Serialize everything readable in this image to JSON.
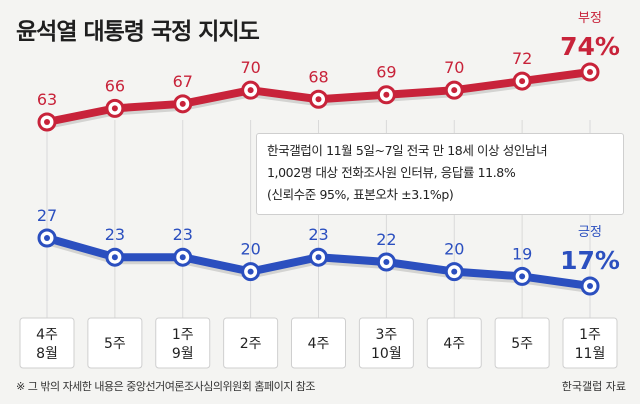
{
  "title": "윤석열 대통령 국정 지지도",
  "note": {
    "lines": [
      "한국갤럽이 11월 5일~7일 전국 만 18세 이상 성인남녀",
      "1,002명 대상 전화조사원 인터뷰, 응답률 11.8%",
      "(신뢰수준 95%, 표본오차 ±3.1%p)"
    ]
  },
  "footer": {
    "note": "※ 그 밖의 자세한 내용은 중앙선거여론조사심의위원회 홈페이지 참조",
    "source": "한국갤럽 자료"
  },
  "colors": {
    "negative": "#c8233a",
    "positive": "#2b4fbf"
  },
  "chart_data": {
    "type": "line",
    "categories": [
      [
        "4주",
        "8월"
      ],
      [
        "5주",
        ""
      ],
      [
        "1주",
        "9월"
      ],
      [
        "2주",
        ""
      ],
      [
        "4주",
        ""
      ],
      [
        "3주",
        "10월"
      ],
      [
        "4주",
        ""
      ],
      [
        "5주",
        ""
      ],
      [
        "1주",
        "11월"
      ]
    ],
    "series": [
      {
        "name": "부정",
        "values": [
          63,
          66,
          67,
          70,
          68,
          69,
          70,
          72,
          74
        ],
        "last_label": "74%",
        "color": "#c8233a"
      },
      {
        "name": "긍정",
        "values": [
          27,
          23,
          23,
          20,
          23,
          22,
          20,
          19,
          17
        ],
        "last_label": "17%",
        "color": "#2b4fbf"
      }
    ]
  }
}
